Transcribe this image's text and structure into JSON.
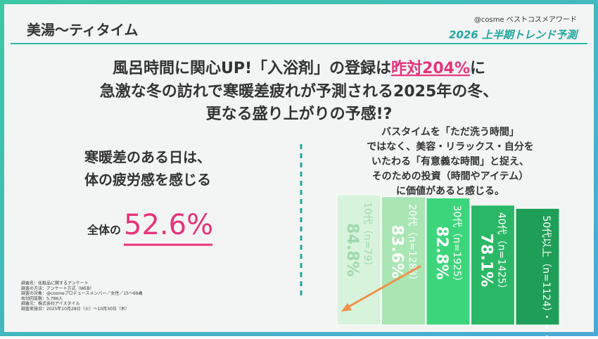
{
  "header": {
    "title": "美湯～ティタイム",
    "brand": "@cosme ベストコスメアワード",
    "subtitle": "2026 上半期トレンド予測"
  },
  "headline": {
    "line1": [
      "風呂時間に関心UP!「入浴剤」の登録は",
      "昨対204%",
      "に"
    ],
    "line2": "急激な冬の訪れで寒暖差疲れが予測される2025年の冬、",
    "line3": "更なる盛り上がりの予感!?"
  },
  "left": {
    "lines": [
      "寒暖差のある日は、",
      "体の疲労感を感じる"
    ],
    "prefix": "全体の",
    "figure": "52.6%"
  },
  "right": {
    "lines": [
      "バスタイムを「ただ洗う時間」",
      "ではなく、美容・リラックス・自分を",
      "いたわる「有意義な時間」と捉え、",
      "そのための投資（時間やアイテム）",
      "に価値があると感じる。"
    ]
  },
  "notes": [
    "調査名：化粧品に関するアンケート",
    "調査の方法：アンケート方式（WEB）",
    "調査の対象：@cosmeプロデュースメンバー／女性／15～69歳",
    "有効回答数：5,786人",
    "調査元：株式会社アイスタイル",
    "調査実施日：2025年10月28日（火）～10月30日（木）"
  ],
  "chart_data": {
    "type": "bar",
    "categories": [
      "10代（n=79）",
      "20代（n=1283）",
      "30代（n=1925）",
      "40代（n=1425）",
      "50代以上（n=1124）・・・"
    ],
    "values": [
      84.8,
      83.6,
      82.8,
      78.1,
      76
    ],
    "value_labels": [
      "84.8%",
      "83.6%",
      "82.8%",
      "78.1%",
      null
    ],
    "colors": [
      "#d8f3dc",
      "#a9e6b4",
      "#3dd57b",
      "#2bb866",
      "#1f9e57"
    ]
  }
}
